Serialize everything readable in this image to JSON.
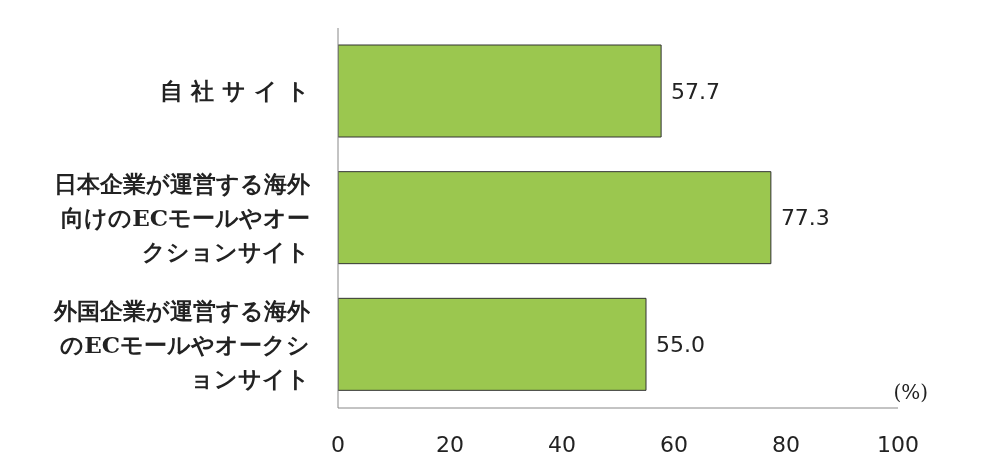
{
  "chart_data": {
    "type": "bar",
    "orientation": "horizontal",
    "categories": [
      "自 社 サ イ ト",
      "日本企業が運営する海外向けのECモールやオークションサイト",
      "外国企業が運営する海外のECモールやオークションサイト"
    ],
    "values": [
      57.7,
      77.3,
      55.0
    ],
    "color": "#9bc74f",
    "value_labels": [
      "57.7",
      "77.3",
      "55.0"
    ],
    "xlim": [
      0,
      100
    ],
    "xticks": [
      0,
      20,
      40,
      60,
      80,
      100
    ],
    "annotations": [
      "(%)"
    ],
    "grid": false
  }
}
